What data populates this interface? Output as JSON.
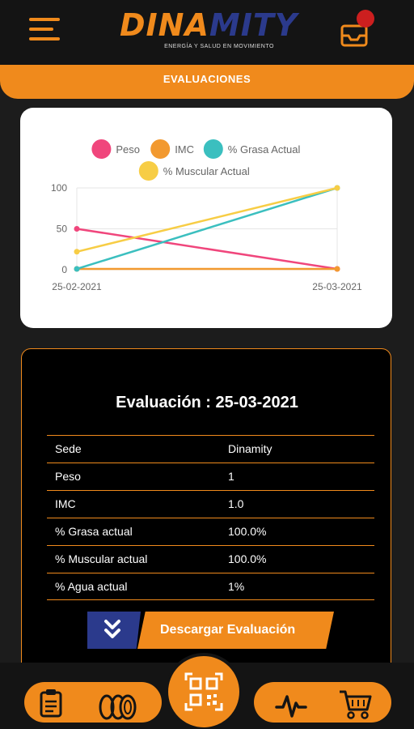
{
  "header": {
    "logo_part1": "DINA",
    "logo_part2": "MITY",
    "tagline": "ENERGÍA Y SALUD EN MOVIMIENTO",
    "menu_icon": "hamburger-icon",
    "inbox_icon": "inbox-icon",
    "notification_color": "#cc1f1f"
  },
  "section": {
    "title": "EVALUACIONES"
  },
  "chart_data": {
    "type": "line",
    "x": [
      "25-02-2021",
      "25-03-2021"
    ],
    "ylim": [
      0,
      100
    ],
    "yticks": [
      "100",
      "50",
      "0"
    ],
    "grid": true,
    "legend_position": "top",
    "series": [
      {
        "name": "Peso",
        "values": [
          50,
          1
        ],
        "color": "#f0467c"
      },
      {
        "name": "IMC",
        "values": [
          1,
          1
        ],
        "color": "#f2992f"
      },
      {
        "name": "% Grasa Actual",
        "values": [
          1,
          100
        ],
        "color": "#3bbfbf"
      },
      {
        "name": "% Muscular Actual",
        "values": [
          22,
          100
        ],
        "color": "#f7cd45"
      }
    ]
  },
  "evaluation": {
    "title_prefix": "Evaluación : ",
    "date": "25-03-2021",
    "rows": [
      {
        "label": "Sede",
        "value": "Dinamity"
      },
      {
        "label": "Peso",
        "value": "1"
      },
      {
        "label": "IMC",
        "value": "1.0"
      },
      {
        "label": "% Grasa actual",
        "value": "100.0%"
      },
      {
        "label": "% Muscular actual",
        "value": "100.0%"
      },
      {
        "label": "% Agua actual",
        "value": "1%"
      }
    ],
    "download_label": "Descargar Evaluación",
    "download_icon": "double-chevron-down-icon"
  },
  "bottom_nav": {
    "items": [
      "clipboard-icon",
      "coins-icon",
      "qr-code-icon",
      "heartbeat-icon",
      "cart-icon"
    ]
  },
  "colors": {
    "accent": "#f08a1c",
    "brand_blue": "#2b3a8c",
    "background": "#1c1c1c"
  }
}
